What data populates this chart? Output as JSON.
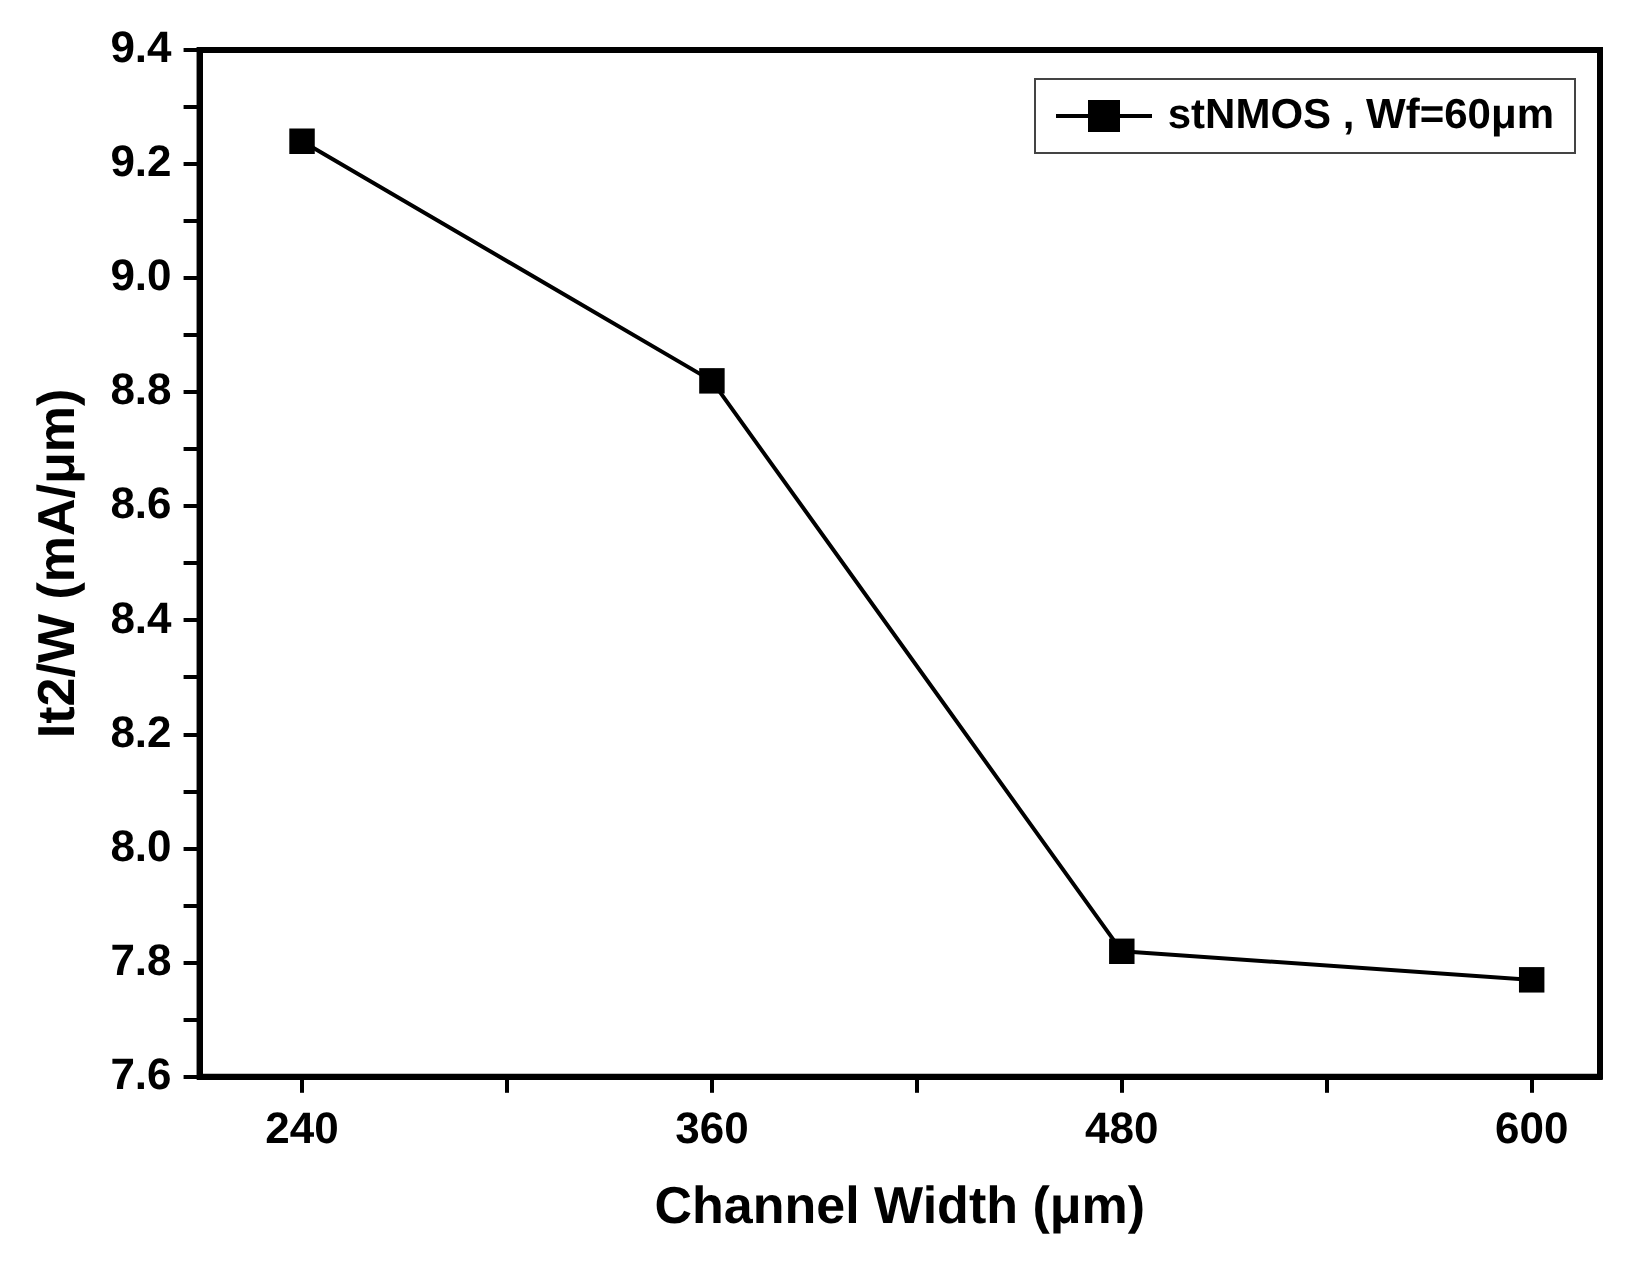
{
  "chart_data": {
    "type": "line",
    "xlabel": "Channel Width (μm)",
    "ylabel": "It2/W (mA/μm)",
    "x": [
      240,
      360,
      480,
      600
    ],
    "series": [
      {
        "name": "stNMOS , Wf=60μm",
        "color": "#000000",
        "values": [
          9.24,
          8.82,
          7.82,
          7.77
        ]
      }
    ],
    "xlim": [
      210,
      620
    ],
    "xticks": [
      240,
      {
        "value": 300,
        "label": null
      },
      360,
      {
        "value": 420,
        "label": null
      },
      480,
      {
        "value": 540,
        "label": null
      },
      600
    ],
    "ylim": [
      7.6,
      9.4
    ],
    "yticks": [
      7.6,
      {
        "value": 7.7,
        "label": null
      },
      7.8,
      {
        "value": 7.9,
        "label": null
      },
      {
        "value": 8,
        "label": "8.0"
      },
      {
        "value": 8.1,
        "label": null
      },
      8.2,
      {
        "value": 8.3,
        "label": null
      },
      8.4,
      {
        "value": 8.5,
        "label": null
      },
      8.6,
      {
        "value": 8.7,
        "label": null
      },
      8.8,
      {
        "value": 8.9,
        "label": null
      },
      {
        "value": 9,
        "label": "9.0"
      },
      {
        "value": 9.1,
        "label": null
      },
      9.2,
      {
        "value": 9.3,
        "label": null
      },
      9.4
    ],
    "grid": false,
    "legend": "top right",
    "marker": "square",
    "line_style": "solid"
  }
}
